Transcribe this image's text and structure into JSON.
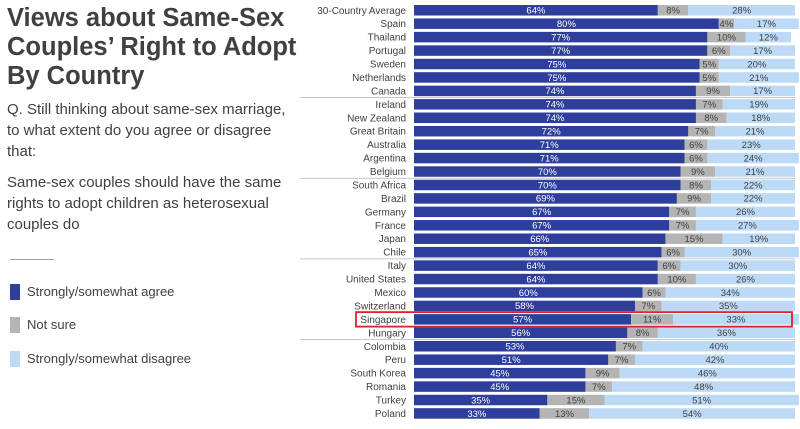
{
  "header": {
    "title": "Views about Same-Sex Couples’ Right to Adopt By Country",
    "question": "Q. Still thinking about same-sex marriage, to what extent do you agree or disagree that:",
    "statement": "Same-sex couples should have the same rights to adopt children as heterosexual couples do"
  },
  "legend": [
    {
      "label": "Strongly/somewhat agree",
      "color": "#2e3e9d"
    },
    {
      "label": "Not sure",
      "color": "#b4b4b4"
    },
    {
      "label": "Strongly/somewhat disagree",
      "color": "#bcd9f5"
    }
  ],
  "colors": {
    "agree": "#2e3e9d",
    "unsure": "#b4b4b4",
    "disagree": "#bcd9f5",
    "highlight": "#e0202a",
    "separator": "#b4b4b4"
  },
  "chart_data": {
    "type": "bar",
    "orientation": "horizontal",
    "stacked": true,
    "xlim": [
      0,
      100
    ],
    "categories": [
      "30-Country Average",
      "Spain",
      "Thailand",
      "Portugal",
      "Sweden",
      "Netherlands",
      "Canada",
      "Ireland",
      "New Zealand",
      "Great Britain",
      "Australia",
      "Argentina",
      "Belgium",
      "South Africa",
      "Brazil",
      "Germany",
      "France",
      "Japan",
      "Chile",
      "Italy",
      "United States",
      "Mexico",
      "Switzerland",
      "Singapore",
      "Hungary",
      "Colombia",
      "Peru",
      "South Korea",
      "Romania",
      "Turkey",
      "Poland"
    ],
    "series": [
      {
        "name": "Strongly/somewhat agree",
        "values": [
          64,
          80,
          77,
          77,
          75,
          75,
          74,
          74,
          74,
          72,
          71,
          71,
          70,
          70,
          69,
          67,
          67,
          66,
          65,
          64,
          64,
          60,
          58,
          57,
          56,
          53,
          51,
          45,
          45,
          35,
          33
        ]
      },
      {
        "name": "Not sure",
        "values": [
          8,
          4,
          10,
          6,
          5,
          5,
          9,
          7,
          8,
          7,
          6,
          6,
          9,
          8,
          9,
          7,
          7,
          15,
          6,
          6,
          10,
          6,
          7,
          11,
          8,
          7,
          7,
          9,
          7,
          15,
          13
        ]
      },
      {
        "name": "Strongly/somewhat disagree",
        "values": [
          28,
          17,
          12,
          17,
          20,
          21,
          17,
          19,
          18,
          21,
          23,
          24,
          21,
          22,
          22,
          26,
          27,
          19,
          30,
          30,
          26,
          34,
          35,
          33,
          36,
          40,
          42,
          46,
          48,
          51,
          54
        ]
      }
    ],
    "labels": [
      [
        "64%",
        "8%",
        "28%"
      ],
      [
        "80%",
        "4%",
        "17%"
      ],
      [
        "77%",
        "10%",
        "12%"
      ],
      [
        "77%",
        "6%",
        "17%"
      ],
      [
        "75%",
        "5%",
        "20%"
      ],
      [
        "75%",
        "5%",
        "21%"
      ],
      [
        "74%",
        "9%",
        "17%"
      ],
      [
        "74%",
        "7%",
        "19%"
      ],
      [
        "74%",
        "8%",
        "18%"
      ],
      [
        "72%",
        "7%",
        "21%"
      ],
      [
        "71%",
        "6%",
        "23%"
      ],
      [
        "71%",
        "6%",
        "24%"
      ],
      [
        "70%",
        "9%",
        "21%"
      ],
      [
        "70%",
        "8%",
        "22%"
      ],
      [
        "69%",
        "9%",
        "22%"
      ],
      [
        "67%",
        "7%",
        "26%"
      ],
      [
        "67%",
        "7%",
        "27%"
      ],
      [
        "66%",
        "15%",
        "19%"
      ],
      [
        "65%",
        "6%",
        "30%"
      ],
      [
        "64%",
        "6%",
        "30%"
      ],
      [
        "64%",
        "10%",
        "26%"
      ],
      [
        "60%",
        "6%",
        "34%"
      ],
      [
        "58%",
        "7%",
        "35%"
      ],
      [
        "57%",
        "11%",
        "33%"
      ],
      [
        "56%",
        "8%",
        "36%"
      ],
      [
        "53%",
        "7%",
        "40%"
      ],
      [
        "51%",
        "7%",
        "42%"
      ],
      [
        "45%",
        "9%",
        "46%"
      ],
      [
        "45%",
        "7%",
        "48%"
      ],
      [
        "35%",
        "15%",
        "51%"
      ],
      [
        "33%",
        "13%",
        "54%"
      ]
    ],
    "highlighted_category": "Singapore",
    "group_separators_after": [
      "Canada",
      "Belgium",
      "Chile",
      "Hungary"
    ]
  }
}
